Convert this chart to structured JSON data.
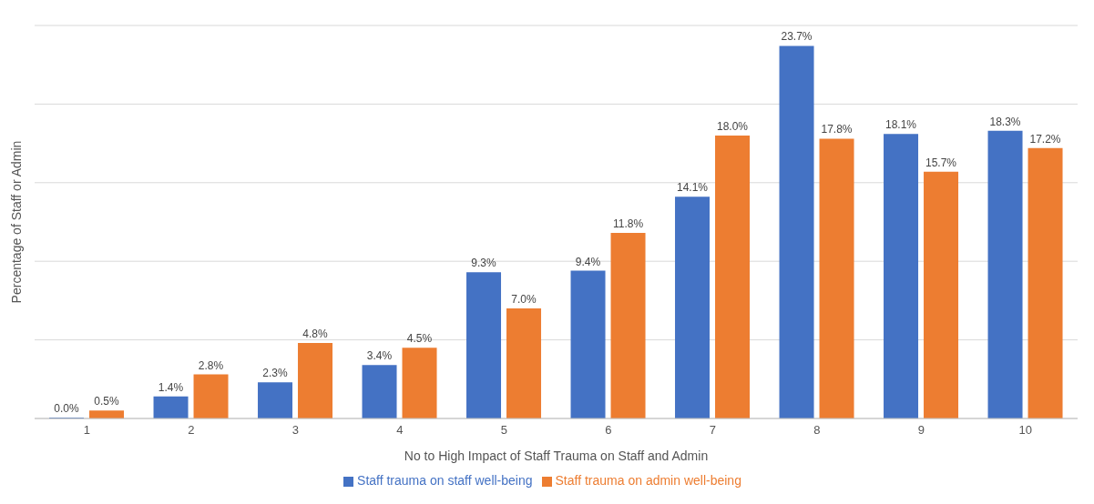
{
  "chart_data": {
    "type": "bar",
    "xlabel": "No to High Impact of Staff Trauma on Staff and Admin",
    "ylabel": "Percentage of Staff or Admin",
    "categories": [
      "1",
      "2",
      "3",
      "4",
      "5",
      "6",
      "7",
      "8",
      "9",
      "10"
    ],
    "series": [
      {
        "name": "Staff trauma on staff well-being",
        "color": "#4472c4",
        "values": [
          0.0,
          1.4,
          2.3,
          3.4,
          9.3,
          9.4,
          14.1,
          23.7,
          18.1,
          18.3
        ],
        "value_labels": [
          "0.0%",
          "1.4%",
          "2.3%",
          "3.4%",
          "9.3%",
          "9.4%",
          "14.1%",
          "23.7%",
          "18.1%",
          "18.3%"
        ]
      },
      {
        "name": "Staff trauma on admin well-being",
        "color": "#ed7d31",
        "values": [
          0.5,
          2.8,
          4.8,
          4.5,
          7.0,
          11.8,
          18.0,
          17.8,
          15.7,
          17.2
        ],
        "value_labels": [
          "0.5%",
          "2.8%",
          "4.8%",
          "4.5%",
          "7.0%",
          "11.8%",
          "18.0%",
          "17.8%",
          "15.7%",
          "17.2%"
        ]
      }
    ],
    "ylim": [
      0,
      25
    ],
    "yticks": [
      {
        "value": 0,
        "label": null
      },
      {
        "value": 5,
        "label": null
      },
      {
        "value": 10,
        "label": null
      },
      {
        "value": 15,
        "label": null
      },
      {
        "value": 20,
        "label": null
      },
      {
        "value": 25,
        "label": null
      }
    ],
    "tick_labels": "x",
    "grid": "y",
    "legend": "bottom"
  }
}
